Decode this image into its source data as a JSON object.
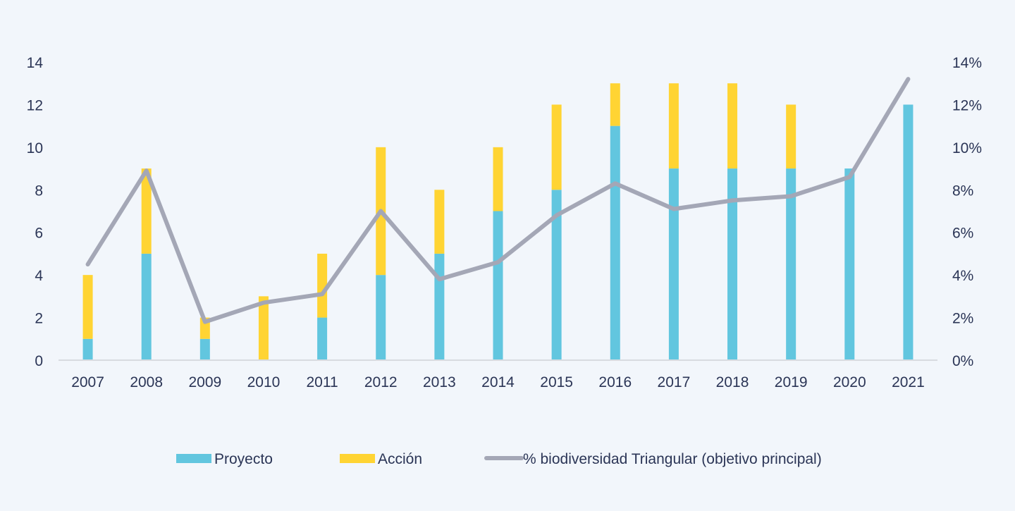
{
  "chart_data": {
    "type": "bar",
    "title": "",
    "xlabel": "",
    "ylabel": "",
    "categories": [
      "2007",
      "2008",
      "2009",
      "2010",
      "2011",
      "2012",
      "2013",
      "2014",
      "2015",
      "2016",
      "2017",
      "2018",
      "2019",
      "2020",
      "2021"
    ],
    "series": [
      {
        "name": "Proyecto",
        "kind": "bar-stacked",
        "axis": "left",
        "color": "#62c6df",
        "values": [
          1,
          5,
          1,
          0,
          2,
          4,
          5,
          7,
          8,
          11,
          9,
          9,
          9,
          9,
          12
        ]
      },
      {
        "name": "Acción",
        "kind": "bar-stacked",
        "axis": "left",
        "color": "#ffd433",
        "values": [
          3,
          4,
          1,
          3,
          3,
          6,
          3,
          3,
          4,
          2,
          4,
          4,
          3,
          0,
          0
        ]
      },
      {
        "name": "% biodiversidad Triangular (objetivo principal)",
        "kind": "line",
        "axis": "right",
        "color": "#a4a7b6",
        "values": [
          4.5,
          8.9,
          1.8,
          2.7,
          3.1,
          7.0,
          3.8,
          4.6,
          6.8,
          8.3,
          7.1,
          7.5,
          7.7,
          8.6,
          13.2
        ]
      }
    ],
    "ylim": [
      0,
      14
    ],
    "y_ticks": [
      "0",
      "2",
      "4",
      "6",
      "8",
      "10",
      "12",
      "14"
    ],
    "y2lim": [
      0,
      14
    ],
    "y2_ticks": [
      "0%",
      "2%",
      "4%",
      "6%",
      "8%",
      "10%",
      "12%",
      "14%"
    ],
    "grid": false,
    "legend_position": "bottom"
  }
}
